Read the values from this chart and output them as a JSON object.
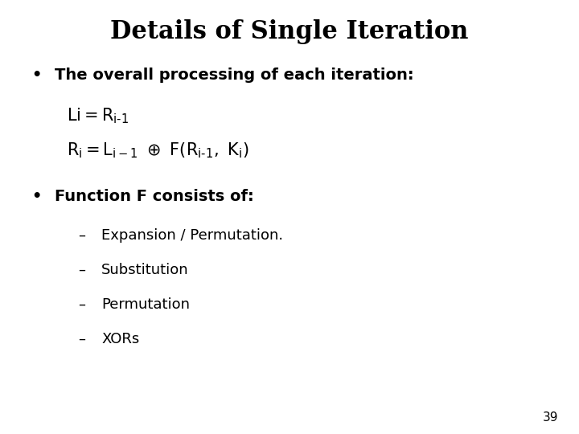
{
  "title": "Details of Single Iteration",
  "title_fontsize": 22,
  "title_fontweight": "bold",
  "background_color": "#ffffff",
  "text_color": "#000000",
  "page_number": "39",
  "bullet1_text": "The overall processing of each iteration:",
  "bullet2_text": "Function F consists of:",
  "sub_items": [
    "Expansion / Permutation.",
    "Substitution",
    "Permutation",
    "XORs"
  ],
  "body_fontsize": 14,
  "eq_fontsize": 15,
  "sub_fontsize": 13,
  "page_fontsize": 11
}
